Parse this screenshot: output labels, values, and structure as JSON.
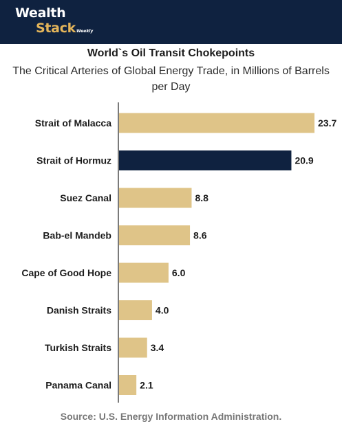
{
  "header": {
    "logo_line1": "Wealth",
    "logo_line2": "Stack",
    "logo_tag": "Weekly"
  },
  "colors": {
    "header_bg": "#0f2240",
    "bar_default": "#dfc488",
    "bar_highlight": "#0f2240",
    "logo_accent": "#e4b55a"
  },
  "chart_data": {
    "type": "bar",
    "orientation": "horizontal",
    "title": "World`s Oil Transit Chokepoints",
    "subtitle": "The Critical Arteries of Global Energy Trade, in Millions of Barrels per Day",
    "categories": [
      "Strait of Malacca",
      "Strait of Hormuz",
      "Suez Canal",
      "Bab-el Mandeb",
      "Cape of Good Hope",
      "Danish Straits",
      "Turkish Straits",
      "Panama Canal"
    ],
    "values": [
      23.7,
      20.9,
      8.8,
      8.6,
      6.0,
      4.0,
      3.4,
      2.1
    ],
    "value_labels": [
      "23.7",
      "20.9",
      "8.8",
      "8.6",
      "6.0",
      "4.0",
      "3.4",
      "2.1"
    ],
    "highlight": "Strait of Hormuz",
    "xlim": [
      0,
      23.7
    ],
    "grid": false,
    "legend": "none"
  },
  "source": "Source: U.S. Energy Information Administration."
}
